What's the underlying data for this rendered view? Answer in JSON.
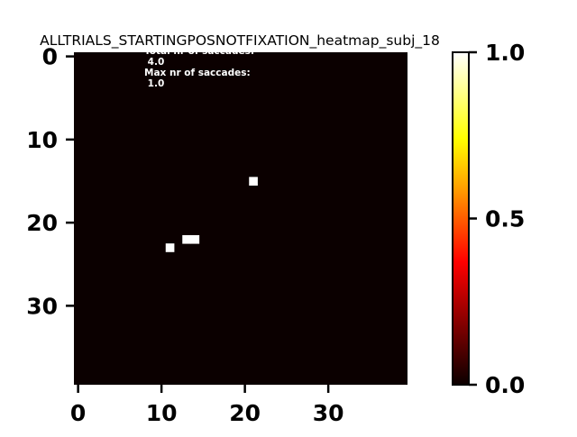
{
  "chart_data": {
    "type": "heatmap",
    "title": "ALLTRIALS_STARTINGPOSNOTFIXATION_heatmap_subj_18",
    "xlabel": "",
    "ylabel": "",
    "grid_shape": [
      40,
      40
    ],
    "xlim": [
      0,
      40
    ],
    "ylim": [
      40,
      0
    ],
    "x_ticks": [
      0,
      10,
      20,
      30
    ],
    "y_ticks": [
      0,
      10,
      20,
      30
    ],
    "colormap": "hot",
    "background_color": "#0b0000",
    "cell_color": "#ffffff",
    "colorbar": {
      "range": [
        0.0,
        1.0
      ],
      "ticks": [
        0.0,
        0.5,
        1.0
      ],
      "tick_labels": [
        "0.0",
        "0.5",
        "1.0"
      ],
      "colors": [
        "#0b0000",
        "#ff0000",
        "#ffa500",
        "#ffff00",
        "#ffffff"
      ]
    },
    "cells": [
      {
        "x": 21,
        "y": 15,
        "value": 1.0
      },
      {
        "x": 13,
        "y": 22,
        "value": 1.0
      },
      {
        "x": 14,
        "y": 22,
        "value": 1.0
      },
      {
        "x": 11,
        "y": 23,
        "value": 1.0
      }
    ],
    "annotations": [
      {
        "text": "Total nr of saccades:"
      },
      {
        "text": " 4.0"
      },
      {
        "text": "Max nr of saccades:"
      },
      {
        "text": " 1.0"
      }
    ]
  }
}
